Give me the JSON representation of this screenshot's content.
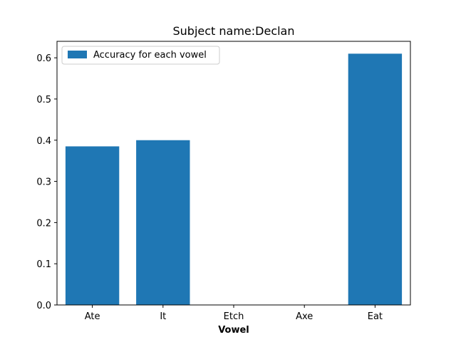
{
  "chart_data": {
    "type": "bar",
    "title": "Subject name:Declan",
    "xlabel": "Vowel",
    "ylabel": "",
    "categories": [
      "Ate",
      "It",
      "Etch",
      "Axe",
      "Eat"
    ],
    "series": [
      {
        "name": "Accuracy for each vowel",
        "values": [
          0.385,
          0.4,
          0.0,
          0.0,
          0.61
        ],
        "color": "#1f77b4"
      }
    ],
    "ylim": [
      0,
      0.64
    ],
    "yticks": [
      0.0,
      0.1,
      0.2,
      0.3,
      0.4,
      0.5,
      0.6
    ],
    "ytick_labels": [
      "0.0",
      "0.1",
      "0.2",
      "0.3",
      "0.4",
      "0.5",
      "0.6"
    ],
    "grid": false,
    "legend_position": "top-left"
  }
}
